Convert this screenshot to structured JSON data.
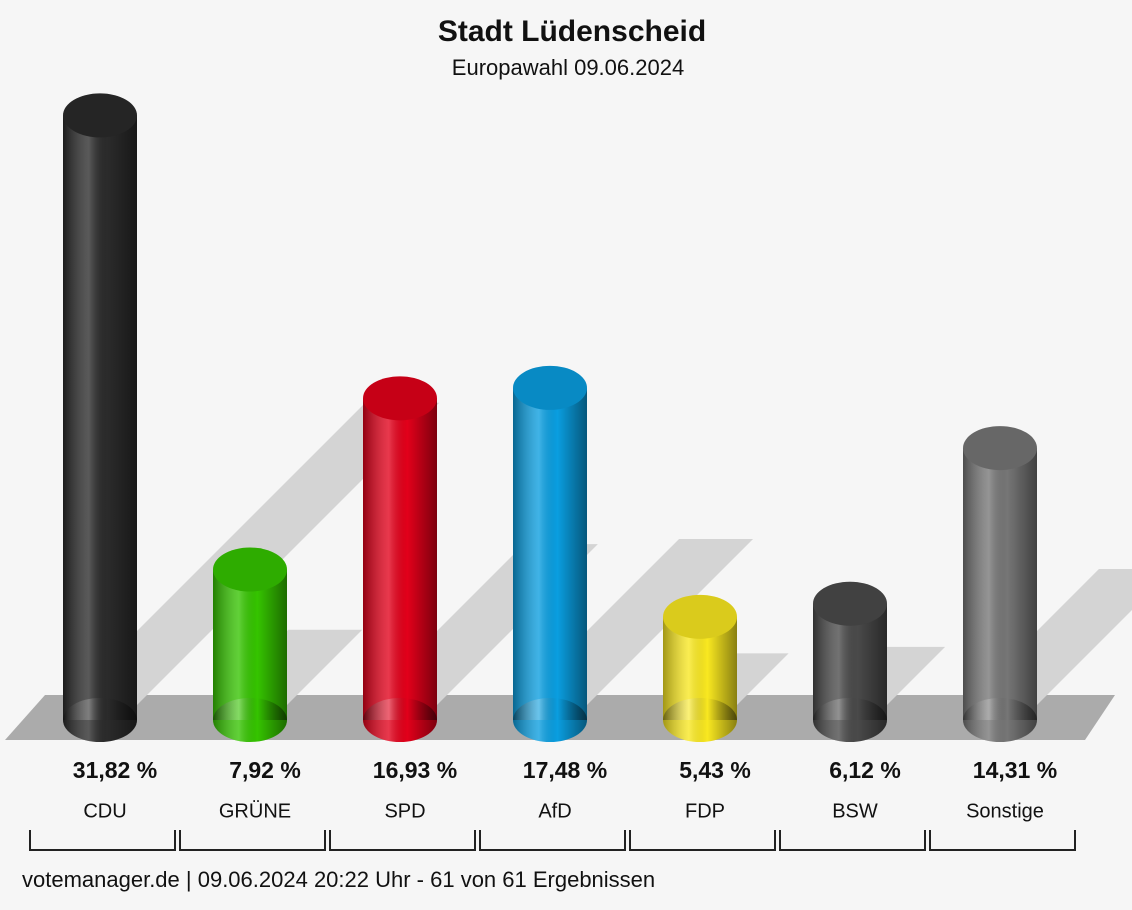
{
  "chart_data": {
    "type": "bar",
    "title": "Stadt Lüdenscheid",
    "subtitle": "Europawahl 09.06.2024",
    "categories": [
      "CDU",
      "GRÜNE",
      "SPD",
      "AfD",
      "FDP",
      "BSW",
      "Sonstige"
    ],
    "values": [
      31.82,
      7.92,
      16.93,
      17.48,
      5.43,
      6.12,
      14.31
    ],
    "value_labels": [
      "31,82 %",
      "7,92 %",
      "16,93 %",
      "17,48 %",
      "5,43 %",
      "6,12 %",
      "14,31 %"
    ],
    "colors": [
      "#2b2b2b",
      "#35c400",
      "#e2001a",
      "#0a9ee0",
      "#f9e820",
      "#4a4a4a",
      "#767676"
    ],
    "footer": "votemanager.de | 09.06.2024 20:22 Uhr - 61 von 61 Ergebnissen"
  }
}
